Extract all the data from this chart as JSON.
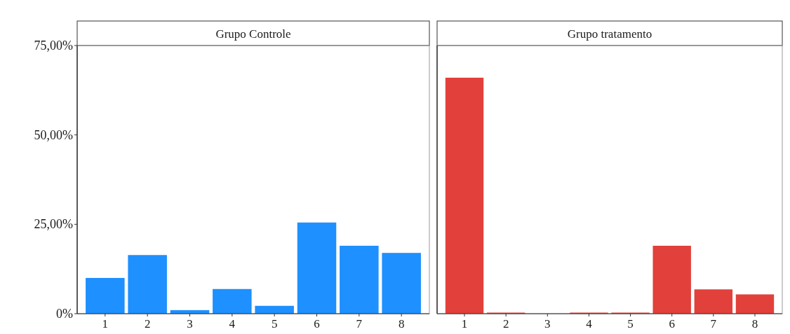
{
  "chart_data": [
    {
      "type": "bar",
      "title": "Grupo Controle",
      "categories": [
        "1",
        "2",
        "3",
        "4",
        "5",
        "6",
        "7",
        "8"
      ],
      "values": [
        10.0,
        16.4,
        1.0,
        6.9,
        2.2,
        25.5,
        19.0,
        17.0
      ],
      "color": "#1e90ff",
      "ylim": [
        0,
        75
      ],
      "yticks": [
        {
          "value": 0,
          "label": "0%"
        },
        {
          "value": 25,
          "label": "25,00%"
        },
        {
          "value": 50,
          "label": "50,00%"
        },
        {
          "value": 75,
          "label": "75,00%"
        }
      ]
    },
    {
      "type": "bar",
      "title": "Grupo tratamento",
      "categories": [
        "1",
        "2",
        "3",
        "4",
        "5",
        "6",
        "7",
        "8"
      ],
      "values": [
        66.0,
        0.3,
        0,
        0.3,
        0.3,
        19.0,
        6.8,
        5.4
      ],
      "color": "#e2403a",
      "ylim": [
        0,
        75
      ],
      "tick_labels": "x"
    }
  ]
}
